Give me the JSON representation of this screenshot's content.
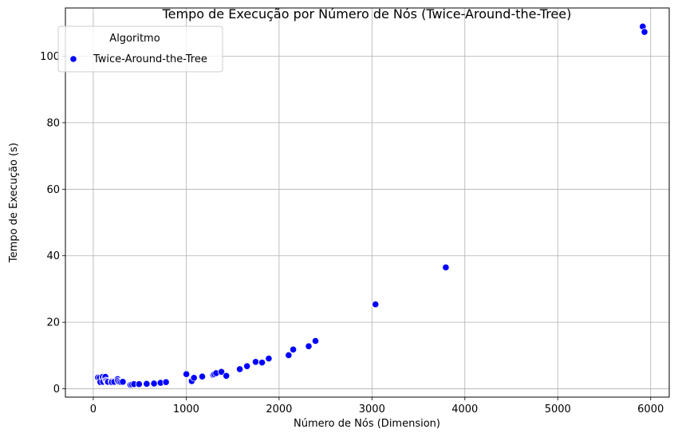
{
  "chart_data": {
    "type": "scatter",
    "title": "Tempo de Execução por Número de Nós (Twice-Around-the-Tree)",
    "xlabel": "Número de Nós (Dimension)",
    "ylabel": "Tempo de Execução (s)",
    "xlim": [
      -300,
      6200
    ],
    "ylim": [
      -2.5,
      114.5
    ],
    "xticks": [
      0,
      1000,
      2000,
      3000,
      4000,
      5000,
      6000
    ],
    "yticks": [
      0,
      20,
      40,
      60,
      80,
      100
    ],
    "grid": true,
    "legend": {
      "title": "Algoritmo",
      "placement": "top-left"
    },
    "series": [
      {
        "name": "Twice-Around-the-Tree",
        "color": "#0000ff",
        "points": [
          [
            51,
            3.4
          ],
          [
            70,
            3.3
          ],
          [
            76,
            2.0
          ],
          [
            99,
            3.4
          ],
          [
            101,
            3.6
          ],
          [
            105,
            2.1
          ],
          [
            124,
            3.4
          ],
          [
            130,
            3.6
          ],
          [
            136,
            2.5
          ],
          [
            144,
            2.3
          ],
          [
            150,
            1.9
          ],
          [
            152,
            2.0
          ],
          [
            159,
            2.1
          ],
          [
            195,
            2.2
          ],
          [
            200,
            2.0
          ],
          [
            225,
            2.1
          ],
          [
            262,
            2.9
          ],
          [
            264,
            2.4
          ],
          [
            280,
            2.1
          ],
          [
            299,
            2.0
          ],
          [
            318,
            2.1
          ],
          [
            400,
            1.2
          ],
          [
            417,
            1.3
          ],
          [
            439,
            1.4
          ],
          [
            493,
            1.4
          ],
          [
            575,
            1.5
          ],
          [
            654,
            1.6
          ],
          [
            724,
            1.8
          ],
          [
            783,
            2.0
          ],
          [
            1002,
            4.4
          ],
          [
            1060,
            2.3
          ],
          [
            1084,
            3.3
          ],
          [
            1173,
            3.7
          ],
          [
            1291,
            4.2
          ],
          [
            1304,
            4.4
          ],
          [
            1323,
            4.7
          ],
          [
            1379,
            5.1
          ],
          [
            1432,
            3.9
          ],
          [
            1577,
            5.9
          ],
          [
            1655,
            6.8
          ],
          [
            1748,
            8.1
          ],
          [
            1817,
            7.9
          ],
          [
            1889,
            9.1
          ],
          [
            2103,
            10.1
          ],
          [
            2152,
            11.8
          ],
          [
            2319,
            12.8
          ],
          [
            2392,
            14.4
          ],
          [
            3038,
            25.4
          ],
          [
            3795,
            36.5
          ],
          [
            5915,
            108.9
          ],
          [
            5934,
            107.3
          ]
        ]
      }
    ]
  }
}
